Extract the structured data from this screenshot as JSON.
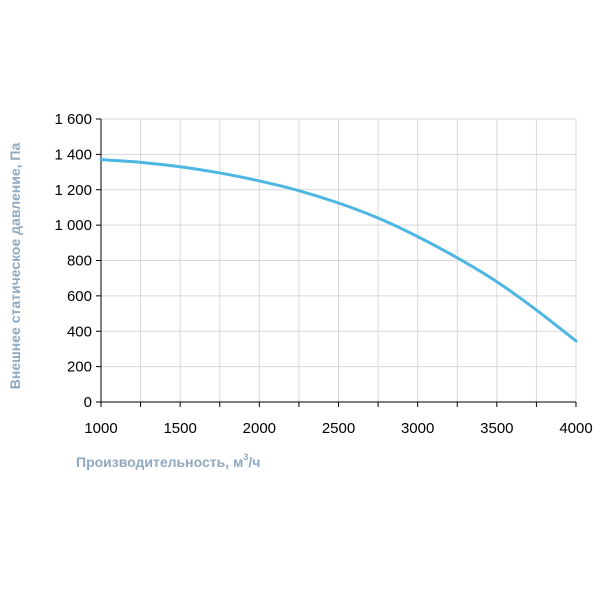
{
  "chart_data": {
    "type": "line",
    "title": "",
    "xlabel": "Производительность, м",
    "xlabel_sup": "3",
    "xlabel_suffix": "/ч",
    "ylabel": "Внешнее статическое давление, Па",
    "xlim": [
      1000,
      4000
    ],
    "ylim": [
      0,
      1600
    ],
    "x_ticks": [
      1000,
      1500,
      2000,
      2500,
      3000,
      3500,
      4000
    ],
    "x_tick_labels": [
      "1000",
      "1500",
      "2000",
      "2500",
      "3000",
      "3500",
      "4000"
    ],
    "y_ticks": [
      0,
      200,
      400,
      600,
      800,
      1000,
      1200,
      1400,
      1600
    ],
    "y_tick_labels": [
      "0",
      "200",
      "400",
      "600",
      "800",
      "1 000",
      "1 200",
      "1 400",
      "1 600"
    ],
    "x_minor_gridlines": [
      1250,
      1750,
      2250,
      2750,
      3250,
      3750
    ],
    "grid": true,
    "legend": "none",
    "colors": {
      "line": "#4DB6E2",
      "grid": "#D9D9D9",
      "axis": "#000000",
      "axis_title": "#8EA9C1"
    },
    "series": [
      {
        "x": [
          1000,
          1250,
          1500,
          1750,
          2000,
          2250,
          2500,
          2750,
          3000,
          3250,
          3500,
          3750,
          4000
        ],
        "values": [
          1370,
          1355,
          1330,
          1295,
          1250,
          1195,
          1125,
          1040,
          935,
          815,
          680,
          520,
          345
        ]
      }
    ]
  }
}
